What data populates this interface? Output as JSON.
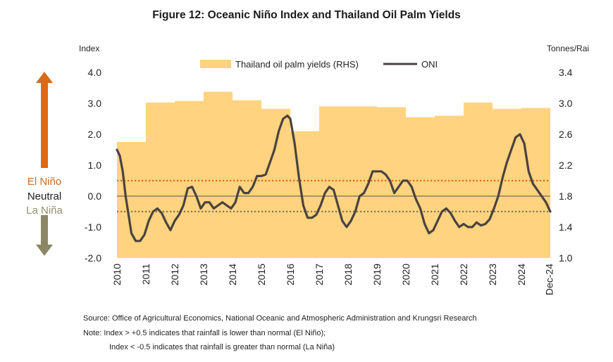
{
  "chart_data": {
    "type": "area+line",
    "title": "Figure 12: Oceanic Niño Index and Thailand Oil Palm Yields",
    "y_left_label": "Index",
    "y_right_label": "Tonnes/Rai",
    "y_left_range": [
      -2.0,
      4.0
    ],
    "y_left_ticks": [
      "4.0",
      "3.0",
      "2.0",
      "1.0",
      "0.0",
      "-1.0",
      "-2.0"
    ],
    "y_right_range": [
      1.0,
      3.4
    ],
    "y_right_ticks": [
      "3.4",
      "3.0",
      "2.6",
      "2.2",
      "1.8",
      "1.4",
      "1.0"
    ],
    "x_range": [
      2010.0,
      2025.0
    ],
    "x_tick_labels": [
      "2010",
      "2011",
      "2012",
      "2013",
      "2014",
      "2015",
      "2016",
      "2017",
      "2018",
      "2019",
      "2020",
      "2021",
      "2022",
      "2023",
      "2024",
      "Dec-24"
    ],
    "legend": {
      "placement": "top-center"
    },
    "series": [
      {
        "name": "Thailand oil palm yields (RHS)",
        "kind": "area",
        "axis": "right",
        "color": "#FFD37F",
        "years": [
          2010,
          2011,
          2012,
          2013,
          2014,
          2015,
          2016,
          2017,
          2018,
          2019,
          2020,
          2021,
          2022,
          2023,
          2024
        ],
        "values": [
          2.5,
          3.01,
          3.03,
          3.15,
          3.04,
          2.93,
          2.64,
          2.96,
          2.96,
          2.95,
          2.82,
          2.84,
          3.01,
          2.93,
          2.94
        ]
      },
      {
        "name": "ONI",
        "kind": "line",
        "axis": "left",
        "color": "#4A4240",
        "points": [
          [
            2010.0,
            1.5
          ],
          [
            2010.1,
            1.3
          ],
          [
            2010.2,
            0.8
          ],
          [
            2010.3,
            0.0
          ],
          [
            2010.4,
            -0.6
          ],
          [
            2010.5,
            -1.2
          ],
          [
            2010.65,
            -1.45
          ],
          [
            2010.8,
            -1.45
          ],
          [
            2010.95,
            -1.25
          ],
          [
            2011.1,
            -0.8
          ],
          [
            2011.25,
            -0.5
          ],
          [
            2011.4,
            -0.4
          ],
          [
            2011.55,
            -0.55
          ],
          [
            2011.7,
            -0.85
          ],
          [
            2011.85,
            -1.1
          ],
          [
            2012.0,
            -0.8
          ],
          [
            2012.15,
            -0.6
          ],
          [
            2012.3,
            -0.3
          ],
          [
            2012.45,
            0.25
          ],
          [
            2012.6,
            0.3
          ],
          [
            2012.75,
            0.0
          ],
          [
            2012.9,
            -0.4
          ],
          [
            2013.05,
            -0.2
          ],
          [
            2013.2,
            -0.2
          ],
          [
            2013.35,
            -0.4
          ],
          [
            2013.5,
            -0.3
          ],
          [
            2013.65,
            -0.2
          ],
          [
            2013.8,
            -0.3
          ],
          [
            2013.95,
            -0.4
          ],
          [
            2014.1,
            -0.2
          ],
          [
            2014.25,
            0.3
          ],
          [
            2014.4,
            0.1
          ],
          [
            2014.55,
            0.1
          ],
          [
            2014.7,
            0.3
          ],
          [
            2014.85,
            0.65
          ],
          [
            2015.0,
            0.65
          ],
          [
            2015.15,
            0.7
          ],
          [
            2015.3,
            1.1
          ],
          [
            2015.45,
            1.5
          ],
          [
            2015.6,
            2.1
          ],
          [
            2015.75,
            2.5
          ],
          [
            2015.9,
            2.6
          ],
          [
            2016.0,
            2.5
          ],
          [
            2016.15,
            1.7
          ],
          [
            2016.3,
            0.6
          ],
          [
            2016.45,
            -0.3
          ],
          [
            2016.6,
            -0.7
          ],
          [
            2016.75,
            -0.7
          ],
          [
            2016.9,
            -0.6
          ],
          [
            2017.05,
            -0.3
          ],
          [
            2017.2,
            0.1
          ],
          [
            2017.35,
            0.3
          ],
          [
            2017.5,
            0.2
          ],
          [
            2017.65,
            -0.3
          ],
          [
            2017.8,
            -0.8
          ],
          [
            2017.95,
            -1.0
          ],
          [
            2018.1,
            -0.8
          ],
          [
            2018.25,
            -0.5
          ],
          [
            2018.4,
            0.0
          ],
          [
            2018.55,
            0.1
          ],
          [
            2018.7,
            0.4
          ],
          [
            2018.85,
            0.8
          ],
          [
            2019.0,
            0.8
          ],
          [
            2019.15,
            0.8
          ],
          [
            2019.3,
            0.7
          ],
          [
            2019.45,
            0.5
          ],
          [
            2019.6,
            0.1
          ],
          [
            2019.75,
            0.3
          ],
          [
            2019.9,
            0.5
          ],
          [
            2020.05,
            0.5
          ],
          [
            2020.2,
            0.3
          ],
          [
            2020.35,
            -0.1
          ],
          [
            2020.5,
            -0.4
          ],
          [
            2020.65,
            -0.9
          ],
          [
            2020.8,
            -1.2
          ],
          [
            2020.95,
            -1.1
          ],
          [
            2021.1,
            -0.8
          ],
          [
            2021.25,
            -0.5
          ],
          [
            2021.4,
            -0.4
          ],
          [
            2021.55,
            -0.55
          ],
          [
            2021.7,
            -0.8
          ],
          [
            2021.85,
            -1.0
          ],
          [
            2022.0,
            -0.9
          ],
          [
            2022.15,
            -1.0
          ],
          [
            2022.3,
            -1.0
          ],
          [
            2022.45,
            -0.85
          ],
          [
            2022.6,
            -0.95
          ],
          [
            2022.75,
            -0.9
          ],
          [
            2022.9,
            -0.75
          ],
          [
            2023.05,
            -0.4
          ],
          [
            2023.2,
            0.0
          ],
          [
            2023.35,
            0.6
          ],
          [
            2023.5,
            1.1
          ],
          [
            2023.65,
            1.5
          ],
          [
            2023.8,
            1.9
          ],
          [
            2023.95,
            2.0
          ],
          [
            2024.1,
            1.7
          ],
          [
            2024.25,
            0.8
          ],
          [
            2024.4,
            0.4
          ],
          [
            2024.55,
            0.2
          ],
          [
            2024.7,
            0.0
          ],
          [
            2024.85,
            -0.2
          ],
          [
            2025.0,
            -0.5
          ]
        ]
      }
    ],
    "reference_lines": [
      {
        "axis": "left",
        "value": 0.5,
        "color": "#E26A16",
        "style": "dotted"
      },
      {
        "axis": "left",
        "value": -0.5,
        "color": "#7E7A52",
        "style": "dotted"
      },
      {
        "axis": "left",
        "value": 0.0,
        "color": "#555555",
        "style": "solid"
      }
    ],
    "side_labels": {
      "el_nino": {
        "text": "El Niño",
        "color": "#CF6A1B"
      },
      "neutral": {
        "text": "Neutral",
        "color": "#1E1E1E"
      },
      "la_nina": {
        "text": "La Niña",
        "color": "#968F67"
      }
    },
    "arrow_colors": {
      "up": "#D86A18",
      "down": "#8B8764"
    }
  },
  "footer": {
    "source": "Source: Office of Agricultural Economics, National Oceanic and Atmospheric Administration and Krungsri Research",
    "note_line_1": "Note: Index > +0.5 indicates that rainfall is lower than normal (El Niño);",
    "note_line_2": "Index < -0.5 indicates that rainfall is greater than normal (La Niña)"
  }
}
